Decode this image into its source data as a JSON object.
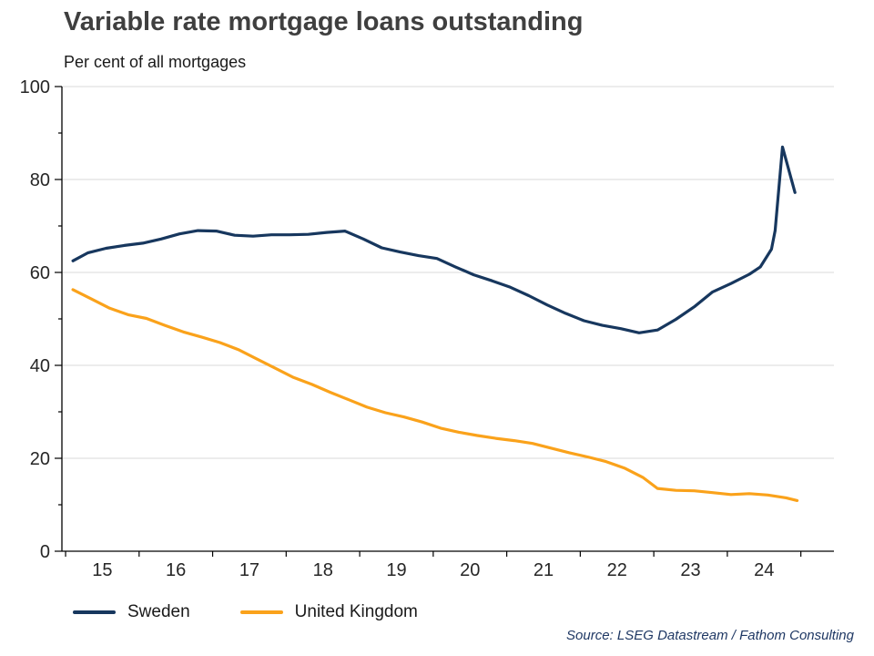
{
  "header": {
    "title": "Variable rate mortgage loans outstanding",
    "subtitle": "Per cent of all mortgages"
  },
  "legend": [
    {
      "label": "Sweden",
      "color": "#17375e"
    },
    {
      "label": "United Kingdom",
      "color": "#faa21b"
    }
  ],
  "source": "Source: LSEG Datastream / Fathom Consulting",
  "colors": {
    "sweden": "#17375e",
    "united_kingdom": "#faa21b",
    "gridline": "#d9d9d9",
    "axis": "#000000",
    "tick_label": "#262626",
    "title": "#3f3f3f",
    "source_text": "#1f3864"
  },
  "chart_data": {
    "type": "line",
    "title": "Variable rate mortgage loans outstanding",
    "subtitle": "Per cent of all mortgages",
    "xlabel": "",
    "ylabel": "Per cent of all mortgages",
    "ylim": [
      0,
      100
    ],
    "yticks": [
      0,
      20,
      40,
      60,
      80,
      100
    ],
    "y_minor_step": 10,
    "xlim": [
      14.45,
      24.95
    ],
    "xticks": [
      15,
      16,
      17,
      18,
      19,
      20,
      21,
      22,
      23,
      24
    ],
    "xticklabels": [
      "15",
      "16",
      "17",
      "18",
      "19",
      "20",
      "21",
      "22",
      "23",
      "24"
    ],
    "grid": "horizontal",
    "legend_position": "bottom",
    "series": [
      {
        "name": "Sweden",
        "color": "#17375e",
        "points": [
          [
            14.6,
            62.5
          ],
          [
            14.8,
            64.2
          ],
          [
            15.05,
            65.2
          ],
          [
            15.3,
            65.8
          ],
          [
            15.55,
            66.3
          ],
          [
            15.8,
            67.2
          ],
          [
            16.05,
            68.3
          ],
          [
            16.3,
            69.0
          ],
          [
            16.55,
            68.9
          ],
          [
            16.8,
            68.0
          ],
          [
            17.05,
            67.8
          ],
          [
            17.3,
            68.1
          ],
          [
            17.55,
            68.1
          ],
          [
            17.8,
            68.2
          ],
          [
            18.05,
            68.6
          ],
          [
            18.3,
            68.9
          ],
          [
            18.55,
            67.2
          ],
          [
            18.8,
            65.3
          ],
          [
            19.05,
            64.4
          ],
          [
            19.3,
            63.6
          ],
          [
            19.55,
            63.0
          ],
          [
            19.8,
            61.2
          ],
          [
            20.05,
            59.5
          ],
          [
            20.3,
            58.2
          ],
          [
            20.55,
            56.8
          ],
          [
            20.8,
            55.0
          ],
          [
            21.05,
            53.0
          ],
          [
            21.3,
            51.2
          ],
          [
            21.55,
            49.6
          ],
          [
            21.8,
            48.6
          ],
          [
            22.05,
            47.9
          ],
          [
            22.3,
            47.0
          ],
          [
            22.55,
            47.6
          ],
          [
            22.8,
            49.9
          ],
          [
            23.05,
            52.6
          ],
          [
            23.3,
            55.8
          ],
          [
            23.55,
            57.6
          ],
          [
            23.8,
            59.6
          ],
          [
            23.95,
            61.2
          ],
          [
            24.1,
            65.0
          ],
          [
            24.15,
            69.0
          ],
          [
            24.25,
            87.0
          ],
          [
            24.42,
            77.2
          ]
        ]
      },
      {
        "name": "United Kingdom",
        "color": "#faa21b",
        "points": [
          [
            14.6,
            56.3
          ],
          [
            14.85,
            54.3
          ],
          [
            15.1,
            52.3
          ],
          [
            15.35,
            50.9
          ],
          [
            15.6,
            50.1
          ],
          [
            15.85,
            48.6
          ],
          [
            16.1,
            47.2
          ],
          [
            16.35,
            46.1
          ],
          [
            16.6,
            44.9
          ],
          [
            16.85,
            43.4
          ],
          [
            17.1,
            41.4
          ],
          [
            17.35,
            39.4
          ],
          [
            17.6,
            37.4
          ],
          [
            17.85,
            35.9
          ],
          [
            18.1,
            34.2
          ],
          [
            18.35,
            32.6
          ],
          [
            18.6,
            31.0
          ],
          [
            18.85,
            29.8
          ],
          [
            19.1,
            28.9
          ],
          [
            19.35,
            27.8
          ],
          [
            19.6,
            26.5
          ],
          [
            19.85,
            25.6
          ],
          [
            20.1,
            24.9
          ],
          [
            20.35,
            24.3
          ],
          [
            20.6,
            23.8
          ],
          [
            20.85,
            23.2
          ],
          [
            21.1,
            22.2
          ],
          [
            21.35,
            21.2
          ],
          [
            21.6,
            20.3
          ],
          [
            21.85,
            19.3
          ],
          [
            22.1,
            17.9
          ],
          [
            22.35,
            15.9
          ],
          [
            22.55,
            13.5
          ],
          [
            22.8,
            13.1
          ],
          [
            23.05,
            13.0
          ],
          [
            23.3,
            12.6
          ],
          [
            23.55,
            12.2
          ],
          [
            23.8,
            12.4
          ],
          [
            24.05,
            12.1
          ],
          [
            24.3,
            11.5
          ],
          [
            24.45,
            10.9
          ]
        ]
      }
    ]
  }
}
